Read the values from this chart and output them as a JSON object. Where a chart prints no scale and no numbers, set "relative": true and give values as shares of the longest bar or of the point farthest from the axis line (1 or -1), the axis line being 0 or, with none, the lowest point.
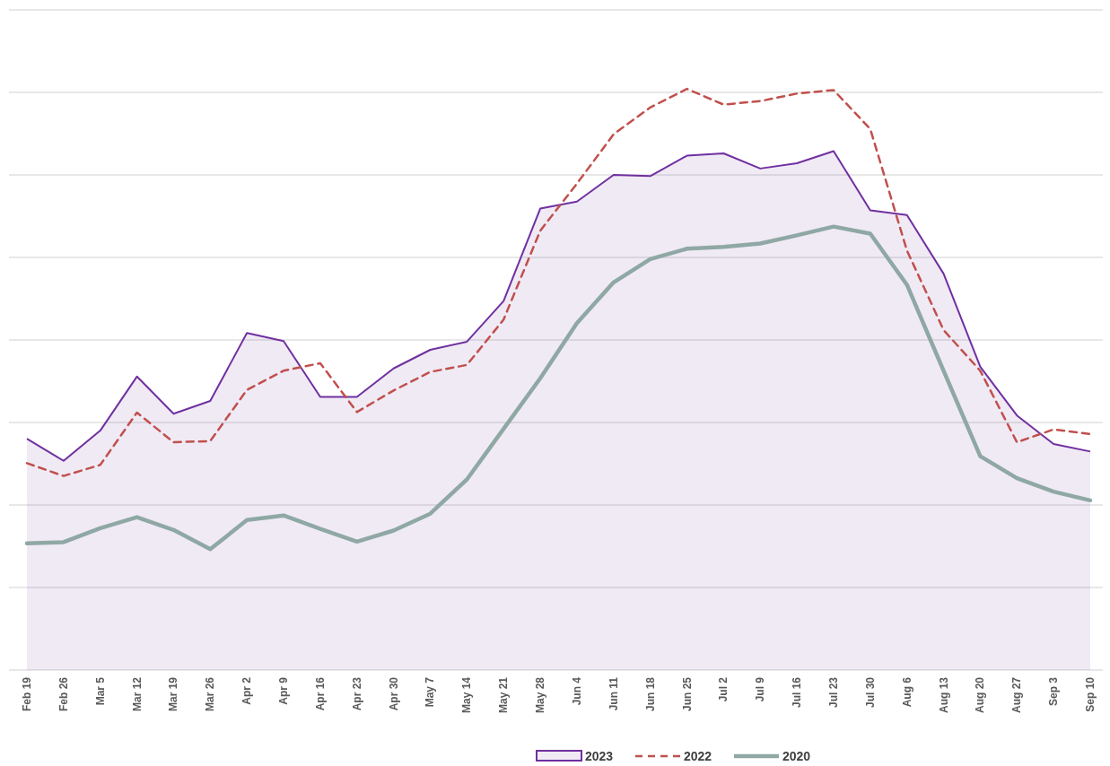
{
  "chart_data": {
    "type": "line",
    "relative": true,
    "grid": "y",
    "legend": "bottom",
    "categories": [
      "Feb 19",
      "Feb 26",
      "Mar 5",
      "Mar 12",
      "Mar 19",
      "Mar 26",
      "Apr 2",
      "Apr 9",
      "Apr 16",
      "Apr 23",
      "Apr 30",
      "May 7",
      "May 14",
      "May 21",
      "May 28",
      "Jun 4",
      "Jun 11",
      "Jun 18",
      "Jun 25",
      "Jul 2",
      "Jul 9",
      "Jul 16",
      "Jul 23",
      "Jul 30",
      "Aug 6",
      "Aug 13",
      "Aug 20",
      "Aug 27",
      "Sep 3",
      "Sep 10"
    ],
    "series": [
      {
        "name": "2023",
        "type": "area",
        "color": "#7030a0",
        "line_style": "solid",
        "values": [
          0.398,
          0.36,
          0.412,
          0.505,
          0.441,
          0.463,
          0.58,
          0.566,
          0.47,
          0.47,
          0.519,
          0.551,
          0.565,
          0.635,
          0.794,
          0.806,
          0.852,
          0.85,
          0.885,
          0.889,
          0.863,
          0.872,
          0.893,
          0.791,
          0.783,
          0.682,
          0.522,
          0.438,
          0.389,
          0.376
        ]
      },
      {
        "name": "2022",
        "color": "#c0504d",
        "line_style": "dashed",
        "values": [
          0.356,
          0.334,
          0.353,
          0.443,
          0.392,
          0.394,
          0.482,
          0.515,
          0.528,
          0.444,
          0.481,
          0.513,
          0.525,
          0.603,
          0.756,
          0.837,
          0.922,
          0.968,
          1,
          0.973,
          0.979,
          0.992,
          0.998,
          0.931,
          0.722,
          0.585,
          0.515,
          0.392,
          0.414,
          0.406
        ]
      },
      {
        "name": "2020",
        "color": "#8fa8a4",
        "line_style": "solid",
        "values": [
          0.218,
          0.22,
          0.244,
          0.263,
          0.241,
          0.208,
          0.258,
          0.266,
          0.243,
          0.221,
          0.24,
          0.269,
          0.328,
          0.415,
          0.502,
          0.597,
          0.667,
          0.707,
          0.725,
          0.728,
          0.734,
          0.748,
          0.763,
          0.751,
          0.663,
          0.515,
          0.368,
          0.33,
          0.307,
          0.292
        ]
      }
    ]
  }
}
